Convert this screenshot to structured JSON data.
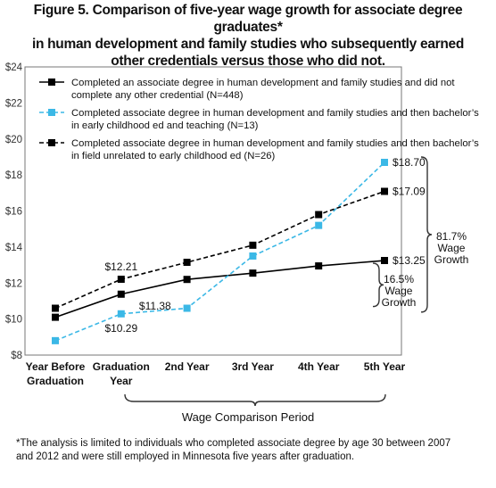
{
  "title": {
    "lines": [
      "Figure 5. Comparison of five-year wage growth for associate degree graduates*",
      "in human development and family studies  who subsequently earned",
      "other credentials versus those who did not."
    ]
  },
  "chart_data": {
    "type": "line",
    "categories": [
      "Year Before Graduation",
      "Graduation Year",
      "2nd Year",
      "3rd Year",
      "4th Year",
      "5th Year"
    ],
    "category_label_lines": [
      [
        "Year Before",
        "Graduation"
      ],
      [
        "Graduation",
        "Year"
      ],
      [
        "2nd Year"
      ],
      [
        "3rd Year"
      ],
      [
        "4th Year"
      ],
      [
        "5th Year"
      ]
    ],
    "xlabel": "Wage Comparison Period",
    "ylabel": "",
    "ylim": [
      8,
      24
    ],
    "yticks": [
      "$8",
      "$10",
      "$12",
      "$14",
      "$16",
      "$18",
      "$20",
      "$22",
      "$24"
    ],
    "grid": false,
    "legend_position": "top",
    "series": [
      {
        "legend_lines": [
          "Completed an associate degree in human development and family studies and did not",
          "complete any other credential (N=448)"
        ],
        "color": "#000000",
        "dash": "solid",
        "values": [
          10.1,
          11.38,
          12.2,
          12.55,
          12.95,
          13.25
        ]
      },
      {
        "legend_lines": [
          "Completed associate degree in human development and family studies and then bachelor’s",
          "in early childhood ed and teaching (N=13)"
        ],
        "color": "#3bb8e6",
        "dash": "dashed",
        "values": [
          8.8,
          10.29,
          10.6,
          13.5,
          15.2,
          18.7
        ]
      },
      {
        "legend_lines": [
          "Completed associate degree in human development and family studies and then bachelor’s",
          "in field unrelated to early childhood ed (N=26)"
        ],
        "color": "#000000",
        "dash": "dashed",
        "values": [
          10.6,
          12.21,
          13.15,
          14.1,
          15.8,
          17.09
        ]
      }
    ],
    "data_labels": [
      {
        "series": 2,
        "index": 1,
        "text": "$12.21",
        "pos": "above"
      },
      {
        "series": 0,
        "index": 1,
        "text": "$11.38",
        "pos": "below-right"
      },
      {
        "series": 1,
        "index": 1,
        "text": "$10.29",
        "pos": "below"
      },
      {
        "series": 1,
        "index": 5,
        "text": "$18.70",
        "pos": "right"
      },
      {
        "series": 2,
        "index": 5,
        "text": "$17.09",
        "pos": "right"
      },
      {
        "series": 0,
        "index": 5,
        "text": "$13.25",
        "pos": "right"
      }
    ],
    "annotations": {
      "growth_small": [
        "16.5%",
        "Wage",
        "Growth"
      ],
      "growth_large": [
        "81.7%",
        "Wage",
        "Growth"
      ]
    }
  },
  "footnote": {
    "lines": [
      "*The analysis is limited to individuals who completed associate degree by age 30 between 2007",
      "and 2012 and were still employed in Minnesota five years after graduation."
    ]
  }
}
